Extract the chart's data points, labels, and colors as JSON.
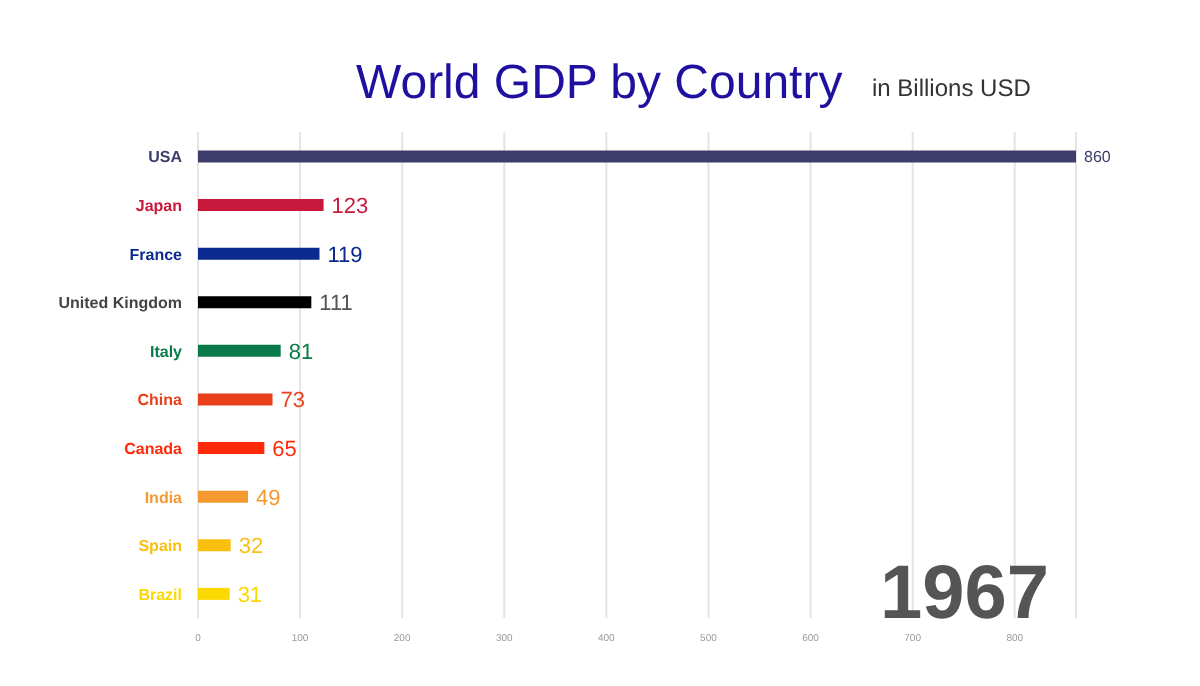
{
  "chart_data": {
    "type": "bar",
    "orientation": "horizontal",
    "title": "World GDP by Country",
    "subtitle": "in Billions USD",
    "categories": [
      "USA",
      "Japan",
      "France",
      "United Kingdom",
      "Italy",
      "China",
      "Canada",
      "India",
      "Spain",
      "Brazil"
    ],
    "values": [
      860,
      123,
      119,
      111,
      81,
      73,
      65,
      49,
      32,
      31
    ],
    "colors": [
      "#3d3d6b",
      "#c8193c",
      "#0a2a8f",
      "#000000",
      "#0a7a4a",
      "#e8401a",
      "#ff2a0a",
      "#f59a30",
      "#fbbf10",
      "#fbd800"
    ],
    "xlim": [
      0,
      860
    ],
    "xticks": [
      0,
      100,
      200,
      300,
      400,
      500,
      600,
      700,
      800
    ],
    "grid": "x",
    "data_labels": true,
    "annotations": [
      "1967"
    ]
  }
}
